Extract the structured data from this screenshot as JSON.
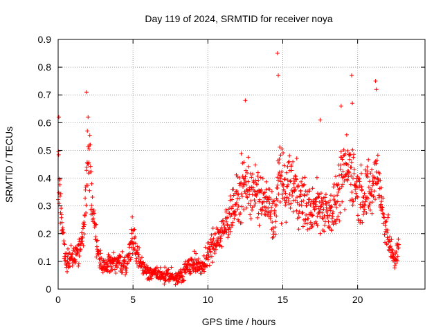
{
  "chart_data": {
    "type": "scatter",
    "title": "Day 119 of 2024, SRMTID for receiver noya",
    "xlabel": "GPS time / hours",
    "ylabel": "SRMTID / TECUs",
    "xlim": [
      0,
      24.5
    ],
    "ylim": [
      0,
      0.9
    ],
    "xticks": [
      0,
      5,
      10,
      15,
      20
    ],
    "yticks": [
      0,
      0.1,
      0.2,
      0.3,
      0.4,
      0.5,
      0.6,
      0.7,
      0.8,
      0.9
    ],
    "xtick_labels": [
      "0",
      "5",
      "10",
      "15",
      "20"
    ],
    "ytick_labels": [
      "0",
      "0.1",
      "0.2",
      "0.3",
      "0.4",
      "0.5",
      "0.6",
      "0.7",
      "0.8",
      "0.9"
    ],
    "grid": true,
    "marker": "plus",
    "color": "#ff0000",
    "series": [
      {
        "name": "SRMTID",
        "x_start": 0.0,
        "x_end": 22.75,
        "envelope": [
          [
            0.0,
            0.45
          ],
          [
            0.1,
            0.35
          ],
          [
            0.3,
            0.2
          ],
          [
            0.5,
            0.1
          ],
          [
            1.0,
            0.12
          ],
          [
            1.5,
            0.15
          ],
          [
            1.8,
            0.25
          ],
          [
            2.0,
            0.55
          ],
          [
            2.2,
            0.35
          ],
          [
            2.4,
            0.25
          ],
          [
            2.7,
            0.12
          ],
          [
            3.0,
            0.08
          ],
          [
            3.5,
            0.1
          ],
          [
            4.0,
            0.1
          ],
          [
            4.5,
            0.08
          ],
          [
            5.0,
            0.18
          ],
          [
            5.5,
            0.09
          ],
          [
            6.0,
            0.06
          ],
          [
            7.0,
            0.05
          ],
          [
            8.0,
            0.04
          ],
          [
            8.5,
            0.07
          ],
          [
            9.0,
            0.1
          ],
          [
            9.5,
            0.07
          ],
          [
            10.0,
            0.12
          ],
          [
            10.5,
            0.18
          ],
          [
            11.0,
            0.2
          ],
          [
            11.5,
            0.28
          ],
          [
            12.0,
            0.32
          ],
          [
            12.5,
            0.38
          ],
          [
            13.0,
            0.35
          ],
          [
            13.5,
            0.33
          ],
          [
            14.0,
            0.3
          ],
          [
            14.5,
            0.25
          ],
          [
            14.8,
            0.45
          ],
          [
            15.0,
            0.35
          ],
          [
            15.5,
            0.38
          ],
          [
            16.0,
            0.35
          ],
          [
            16.5,
            0.3
          ],
          [
            17.0,
            0.28
          ],
          [
            17.5,
            0.3
          ],
          [
            18.0,
            0.28
          ],
          [
            18.5,
            0.3
          ],
          [
            19.0,
            0.4
          ],
          [
            19.5,
            0.45
          ],
          [
            20.0,
            0.35
          ],
          [
            20.5,
            0.35
          ],
          [
            21.0,
            0.35
          ],
          [
            21.3,
            0.45
          ],
          [
            21.6,
            0.3
          ],
          [
            22.0,
            0.2
          ],
          [
            22.3,
            0.12
          ],
          [
            22.5,
            0.1
          ],
          [
            22.75,
            0.18
          ]
        ],
        "peaks": [
          [
            0.05,
            0.62
          ],
          [
            1.9,
            0.71
          ],
          [
            2.0,
            0.62
          ],
          [
            4.95,
            0.26
          ],
          [
            12.5,
            0.68
          ],
          [
            14.65,
            0.85
          ],
          [
            14.7,
            0.77
          ],
          [
            17.5,
            0.61
          ],
          [
            18.9,
            0.66
          ],
          [
            19.6,
            0.77
          ],
          [
            19.65,
            0.67
          ],
          [
            21.2,
            0.75
          ],
          [
            21.25,
            0.72
          ]
        ]
      }
    ]
  }
}
